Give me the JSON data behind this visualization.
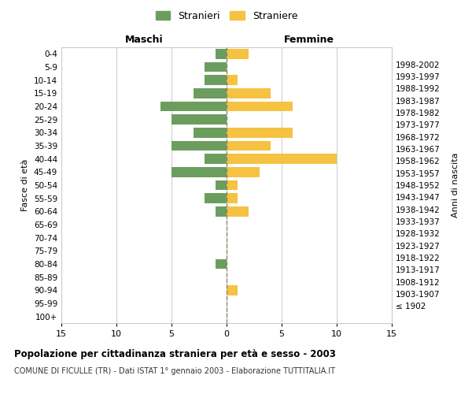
{
  "age_groups": [
    "100+",
    "95-99",
    "90-94",
    "85-89",
    "80-84",
    "75-79",
    "70-74",
    "65-69",
    "60-64",
    "55-59",
    "50-54",
    "45-49",
    "40-44",
    "35-39",
    "30-34",
    "25-29",
    "20-24",
    "15-19",
    "10-14",
    "5-9",
    "0-4"
  ],
  "birth_years": [
    "≤ 1902",
    "1903-1907",
    "1908-1912",
    "1913-1917",
    "1918-1922",
    "1923-1927",
    "1928-1932",
    "1933-1937",
    "1938-1942",
    "1943-1947",
    "1948-1952",
    "1953-1957",
    "1958-1962",
    "1963-1967",
    "1968-1972",
    "1973-1977",
    "1978-1982",
    "1983-1987",
    "1988-1992",
    "1993-1997",
    "1998-2002"
  ],
  "males": [
    0,
    0,
    0,
    0,
    1,
    0,
    0,
    0,
    1,
    2,
    1,
    5,
    2,
    5,
    3,
    5,
    6,
    3,
    2,
    2,
    1
  ],
  "females": [
    0,
    0,
    1,
    0,
    0,
    0,
    0,
    0,
    2,
    1,
    1,
    3,
    10,
    4,
    6,
    0,
    6,
    4,
    1,
    0,
    2
  ],
  "male_color": "#6b9e5e",
  "female_color": "#f5c242",
  "xlim": 15,
  "title": "Popolazione per cittadinanza straniera per età e sesso - 2003",
  "subtitle": "COMUNE DI FICULLE (TR) - Dati ISTAT 1° gennaio 2003 - Elaborazione TUTTITALIA.IT",
  "ylabel_left": "Fasce di età",
  "ylabel_right": "Anni di nascita",
  "legend_male": "Stranieri",
  "legend_female": "Straniere",
  "maschi_label": "Maschi",
  "femmine_label": "Femmine",
  "background_color": "#ffffff",
  "grid_color": "#cccccc",
  "dashed_line_color": "#888866"
}
